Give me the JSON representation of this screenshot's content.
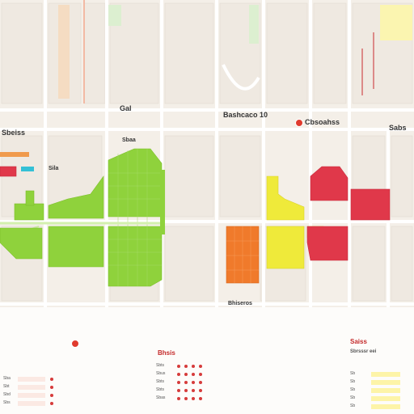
{
  "labels": {
    "top_center": "Bashcaco 10",
    "right_marker": "Cbsoahss",
    "left": "Sbeiss",
    "far_right": "Sabs",
    "mid_small": "Sbaa",
    "bottom_street": "Bhiseros",
    "small_left": "Sila",
    "gal": "Gal"
  },
  "zones": [
    {
      "name": "green-zone",
      "color": "#8fd23c"
    },
    {
      "name": "yellow-zone",
      "color": "#efea3a"
    },
    {
      "name": "orange-zone",
      "color": "#f07a2b"
    },
    {
      "name": "red-zone",
      "color": "#e0384a"
    }
  ],
  "panels": {
    "left": {
      "title": "",
      "rows": [
        "Sba",
        "Sbt",
        "Sbd",
        "Sbs"
      ]
    },
    "center": {
      "title": "Bhsis",
      "rows": [
        "Sbts",
        "Sbus",
        "Sbts",
        "Sbts",
        "Sbas"
      ]
    },
    "right": {
      "title": "Saiss",
      "subtitle": "Sbrsssr eei",
      "rows": [
        "Sb",
        "Sb",
        "Sb",
        "Sb",
        "Sb"
      ]
    }
  }
}
